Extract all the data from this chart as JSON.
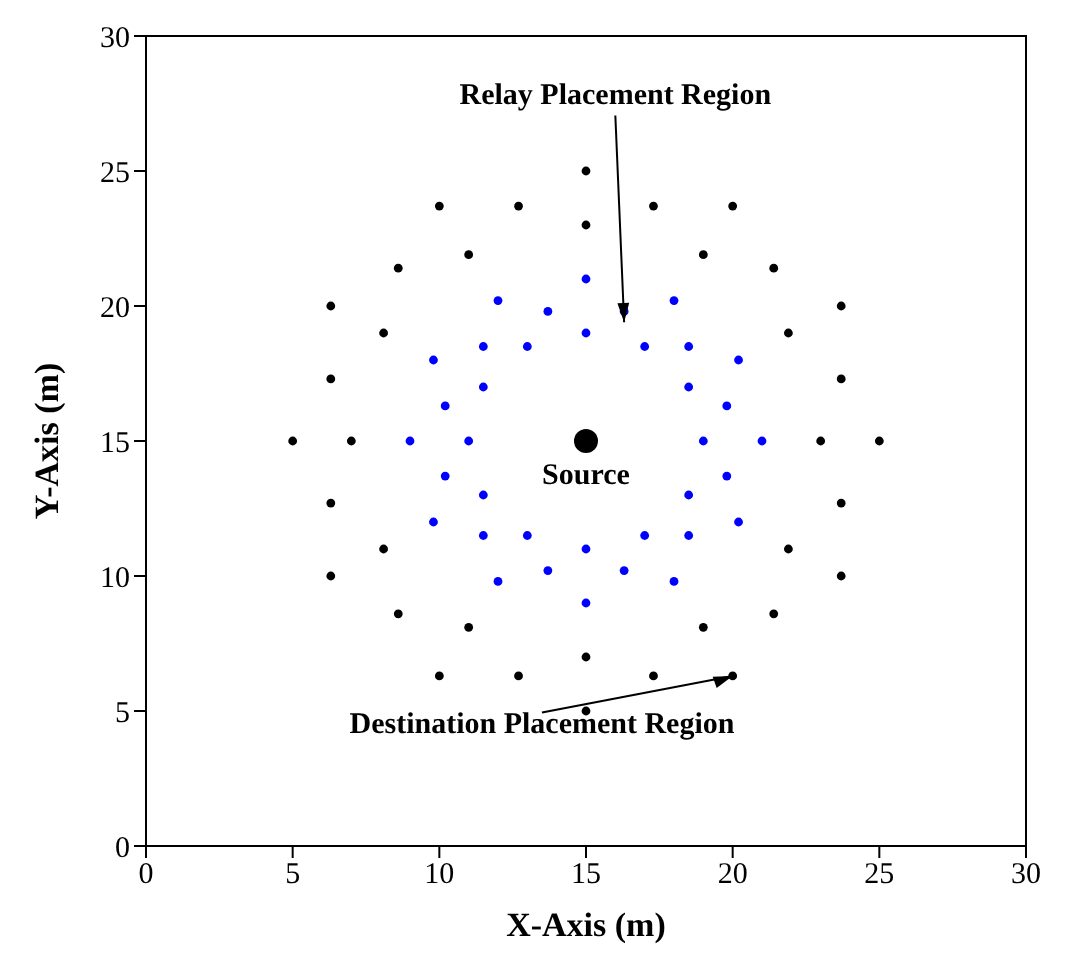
{
  "chart_data": {
    "type": "scatter",
    "xlabel": "X-Axis (m)",
    "ylabel": "Y-Axis (m)",
    "xlim": [
      0,
      30
    ],
    "ylim": [
      0,
      30
    ],
    "xticks": [
      0,
      5,
      10,
      15,
      20,
      25,
      30
    ],
    "yticks": [
      0,
      5,
      10,
      15,
      20,
      25,
      30
    ],
    "marker": "circle",
    "series": [
      {
        "color": "#000000",
        "x": [
          23,
          21.9,
          19,
          15,
          11,
          8.1,
          7,
          8.1,
          11,
          15,
          19,
          21.9,
          25,
          23.7,
          20,
          15,
          10,
          6.3,
          5,
          6.3,
          10,
          15,
          20,
          23.7,
          23.7,
          21.4,
          17.3,
          12.7,
          8.6,
          6.3,
          6.3,
          8.6,
          12.7,
          17.3,
          21.4,
          23.7
        ],
        "values": [
          15,
          19,
          21.9,
          23,
          21.9,
          19,
          15,
          11,
          8.1,
          7,
          8.1,
          11,
          15,
          20,
          23.7,
          25,
          23.7,
          20,
          15,
          10,
          6.3,
          5,
          6.3,
          10,
          17.3,
          21.4,
          23.7,
          23.7,
          21.4,
          17.3,
          12.7,
          8.6,
          6.3,
          6.3,
          8.6,
          12.7
        ]
      },
      {
        "color": "#0000ff",
        "x": [
          19,
          18.5,
          17,
          15,
          13,
          11.5,
          11,
          11.5,
          13,
          15,
          17,
          18.5,
          21,
          20.2,
          18,
          15,
          12,
          9.8,
          9,
          9.8,
          12,
          15,
          18,
          20.2,
          19.8,
          18.5,
          16.3,
          13.7,
          11.5,
          10.2,
          10.2,
          11.5,
          13.7,
          16.3,
          18.5,
          19.8
        ],
        "values": [
          15,
          17,
          18.5,
          19,
          18.5,
          17,
          15,
          13,
          11.5,
          11,
          11.5,
          13,
          15,
          18,
          20.2,
          21,
          20.2,
          18,
          15,
          12,
          9.8,
          9,
          9.8,
          12,
          16.3,
          18.5,
          19.8,
          19.8,
          18.5,
          16.3,
          13.7,
          11.5,
          10.2,
          10.2,
          11.5,
          13.7
        ]
      },
      {
        "color": "#000000",
        "x": [
          15
        ],
        "values": [
          15
        ]
      }
    ],
    "annotations": [
      {
        "text": "Relay Placement Region",
        "x": 16.3,
        "y": 19.4
      },
      {
        "text": "Destination Placement Region",
        "x": 20,
        "y": 6.3
      },
      {
        "text": "Source",
        "x": 15,
        "y": 15
      }
    ]
  }
}
